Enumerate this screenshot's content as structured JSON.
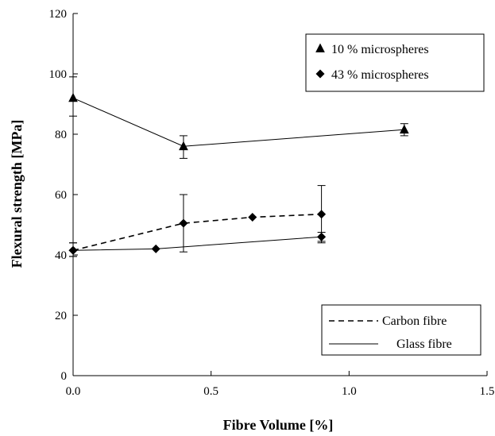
{
  "chart_data": {
    "type": "scatter",
    "title": "",
    "xlabel": "Fibre Volume [%]",
    "ylabel": "Flexural strength [MPa]",
    "xlim": [
      0,
      1.5
    ],
    "ylim": [
      0,
      120
    ],
    "xticks": [
      "0.0",
      "0.5",
      "1.0",
      "1.5"
    ],
    "yticks": [
      "0",
      "20",
      "40",
      "60",
      "80",
      "100",
      "120"
    ],
    "grid": false,
    "marker_legend": {
      "position": "top-right",
      "entries": [
        {
          "label": "10 % microspheres",
          "marker": "triangle"
        },
        {
          "label": "43 % microspheres",
          "marker": "diamond"
        }
      ]
    },
    "line_legend": {
      "position": "bottom-right",
      "entries": [
        {
          "label": "Carbon fibre",
          "style": "dashed"
        },
        {
          "label": "Glass fibre",
          "style": "solid"
        }
      ]
    },
    "series": [
      {
        "marker": "triangle",
        "line": "solid",
        "points": [
          {
            "x": 0.0,
            "y": 92,
            "err_low": 86,
            "err_high": 99
          },
          {
            "x": 0.4,
            "y": 76,
            "err_low": 72,
            "err_high": 79.5
          },
          {
            "x": 1.2,
            "y": 81.5,
            "err_low": 79.5,
            "err_high": 83.5
          }
        ]
      },
      {
        "marker": "diamond",
        "line": "solid",
        "points": [
          {
            "x": 0.0,
            "y": 41.5,
            "err_low": 39.5,
            "err_high": 44
          },
          {
            "x": 0.3,
            "y": 42
          },
          {
            "x": 0.9,
            "y": 46,
            "err_low": 44.5,
            "err_high": 47.5
          }
        ]
      },
      {
        "marker": "diamond",
        "line": "dashed",
        "points": [
          {
            "x": 0.0,
            "y": 41.5,
            "err_low": 39.5,
            "err_high": 44
          },
          {
            "x": 0.4,
            "y": 50.5,
            "err_low": 41,
            "err_high": 60
          },
          {
            "x": 0.65,
            "y": 52.5
          },
          {
            "x": 0.9,
            "y": 53.5,
            "err_low": 44,
            "err_high": 63
          }
        ]
      }
    ],
    "colors": {
      "ink": "#000000",
      "background": "#ffffff"
    }
  }
}
